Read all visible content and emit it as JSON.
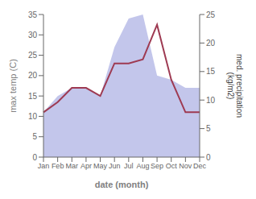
{
  "chart_data": {
    "type": "line",
    "xlabel": "date (month)",
    "ylabel": "max temp (C)",
    "y2label": "med. precipitation\n(kg/m2)",
    "categories": [
      "Jan",
      "Feb",
      "Mar",
      "Apr",
      "May",
      "Jun",
      "Jul",
      "Aug",
      "Sep",
      "Oct",
      "Nov",
      "Dec"
    ],
    "series": [
      {
        "type": "area",
        "color": "#b8bce8",
        "values": [
          11,
          15,
          17,
          17,
          15,
          27,
          34,
          35,
          20,
          19,
          17,
          17
        ]
      },
      {
        "type": "line",
        "color": "#9e3a52",
        "values": [
          11,
          13.5,
          17,
          17,
          15,
          23,
          23,
          24,
          32.5,
          19,
          11,
          11
        ]
      }
    ],
    "ylim": [
      0,
      35
    ],
    "yticks": [
      0,
      5,
      10,
      15,
      20,
      25,
      30,
      35
    ],
    "y2lim": [
      0,
      25
    ],
    "y2ticks": [
      0,
      5,
      10,
      15,
      20,
      25
    ],
    "grid": false
  }
}
